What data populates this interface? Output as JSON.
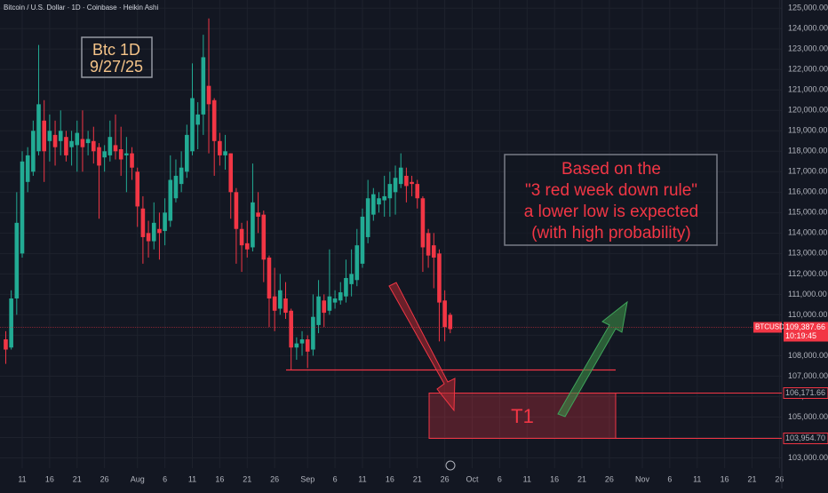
{
  "chart_data": {
    "type": "candlestick",
    "title": "Bitcoin / U.S. Dollar · 1D · Coinbase · Heikin Ashi",
    "up_color": "#22ab94",
    "down_color": "#f23645",
    "ylim": [
      102500,
      125400
    ],
    "yticks": [
      {
        "value": 103000,
        "label": "103,000.00"
      },
      {
        "value": 104000,
        "label": "104,000.00"
      },
      {
        "value": 105000,
        "label": "105,000.00"
      },
      {
        "value": 106000,
        "label": "106,000.00"
      },
      {
        "value": 107000,
        "label": "107,000.00"
      },
      {
        "value": 108000,
        "label": "108,000.00"
      },
      {
        "value": 109000,
        "label": "109,000.00"
      },
      {
        "value": 110000,
        "label": "110,000.00"
      },
      {
        "value": 111000,
        "label": "111,000.00"
      },
      {
        "value": 112000,
        "label": "112,000.00"
      },
      {
        "value": 113000,
        "label": "113,000.00"
      },
      {
        "value": 114000,
        "label": "114,000.00"
      },
      {
        "value": 115000,
        "label": "115,000.00"
      },
      {
        "value": 116000,
        "label": "116,000.00"
      },
      {
        "value": 117000,
        "label": "117,000.00"
      },
      {
        "value": 118000,
        "label": "118,000.00"
      },
      {
        "value": 119000,
        "label": "119,000.00"
      },
      {
        "value": 120000,
        "label": "120,000.00"
      },
      {
        "value": 121000,
        "label": "121,000.00"
      },
      {
        "value": 122000,
        "label": "122,000.00"
      },
      {
        "value": 123000,
        "label": "123,000.00"
      },
      {
        "value": 124000,
        "label": "124,000.00"
      },
      {
        "value": 125000,
        "label": "125,000.00"
      }
    ],
    "xticks": [
      {
        "value": "07-11",
        "label": "11"
      },
      {
        "value": "07-16",
        "label": "16"
      },
      {
        "value": "07-21",
        "label": "21"
      },
      {
        "value": "07-26",
        "label": "26"
      },
      {
        "value": "08-01",
        "label": "Aug"
      },
      {
        "value": "08-06",
        "label": "6"
      },
      {
        "value": "08-11",
        "label": "11"
      },
      {
        "value": "08-16",
        "label": "16"
      },
      {
        "value": "08-21",
        "label": "21"
      },
      {
        "value": "08-26",
        "label": "26"
      },
      {
        "value": "09-01",
        "label": "Sep"
      },
      {
        "value": "09-06",
        "label": "6"
      },
      {
        "value": "09-11",
        "label": "11"
      },
      {
        "value": "09-16",
        "label": "16"
      },
      {
        "value": "09-21",
        "label": "21"
      },
      {
        "value": "09-26",
        "label": "26"
      },
      {
        "value": "10-01",
        "label": "Oct"
      },
      {
        "value": "10-06",
        "label": "6"
      },
      {
        "value": "10-11",
        "label": "11"
      },
      {
        "value": "10-16",
        "label": "16"
      },
      {
        "value": "10-21",
        "label": "21"
      },
      {
        "value": "10-26",
        "label": "26"
      },
      {
        "value": "11-01",
        "label": "Nov"
      },
      {
        "value": "11-06",
        "label": "6"
      },
      {
        "value": "11-11",
        "label": "11"
      },
      {
        "value": "11-16",
        "label": "16"
      },
      {
        "value": "11-21",
        "label": "21"
      },
      {
        "value": "11-26",
        "label": "26"
      }
    ],
    "x": [
      "07-08",
      "07-09",
      "07-10",
      "07-11",
      "07-12",
      "07-13",
      "07-14",
      "07-15",
      "07-16",
      "07-17",
      "07-18",
      "07-19",
      "07-20",
      "07-21",
      "07-22",
      "07-23",
      "07-24",
      "07-25",
      "07-26",
      "07-27",
      "07-28",
      "07-29",
      "07-30",
      "07-31",
      "08-01",
      "08-02",
      "08-03",
      "08-04",
      "08-05",
      "08-06",
      "08-07",
      "08-08",
      "08-09",
      "08-10",
      "08-11",
      "08-12",
      "08-13",
      "08-14",
      "08-15",
      "08-16",
      "08-17",
      "08-18",
      "08-19",
      "08-20",
      "08-21",
      "08-22",
      "08-23",
      "08-24",
      "08-25",
      "08-26",
      "08-27",
      "08-28",
      "08-29",
      "08-30",
      "08-31",
      "09-01",
      "09-02",
      "09-03",
      "09-04",
      "09-05",
      "09-06",
      "09-07",
      "09-08",
      "09-09",
      "09-10",
      "09-11",
      "09-12",
      "09-13",
      "09-14",
      "09-15",
      "09-16",
      "09-17",
      "09-18",
      "09-19",
      "09-20",
      "09-21",
      "09-22",
      "09-23",
      "09-24",
      "09-25",
      "09-26",
      "09-27"
    ],
    "open": [
      108800,
      108400,
      110800,
      113000,
      116500,
      117000,
      118000,
      119500,
      118500,
      118800,
      118500,
      118700,
      118200,
      118300,
      118600,
      118400,
      118500,
      118200,
      117700,
      117800,
      118300,
      118100,
      117800,
      117900,
      117000,
      115200,
      114000,
      113600,
      114200,
      114100,
      114600,
      115700,
      116400,
      117000,
      118000,
      119300,
      119800,
      121200,
      120500,
      118500,
      117800,
      117900,
      116000,
      114200,
      113500,
      113300,
      115000,
      114900,
      112800,
      110900,
      110300,
      110800,
      110200,
      108400,
      108600,
      108800,
      108300,
      109500,
      110700,
      110200,
      110600,
      110700,
      110900,
      111500,
      111700,
      112500,
      113800,
      114900,
      115400,
      115600,
      115700,
      116000,
      116400,
      116800,
      116500,
      116400,
      115700,
      114000,
      113400,
      113000,
      110700,
      110000
    ],
    "high": [
      109200,
      111200,
      116000,
      118000,
      118200,
      119500,
      123200,
      120500,
      119800,
      119500,
      120000,
      119000,
      119000,
      119500,
      120000,
      119000,
      119200,
      118400,
      118300,
      119500,
      119800,
      119200,
      118700,
      118200,
      117200,
      115800,
      114600,
      115500,
      115000,
      115700,
      117800,
      117600,
      118000,
      119300,
      122300,
      120400,
      123700,
      124500,
      120600,
      118900,
      118800,
      117900,
      116200,
      114500,
      114600,
      117400,
      116000,
      115100,
      112900,
      112300,
      112000,
      111600,
      110300,
      108900,
      109200,
      109000,
      111000,
      111700,
      111000,
      113200,
      111200,
      111600,
      112700,
      113200,
      114200,
      115200,
      116600,
      116200,
      116000,
      116800,
      117000,
      117300,
      117900,
      117200,
      116800,
      116600,
      115800,
      114200,
      114000,
      113200,
      111200,
      110100
    ],
    "low": [
      107600,
      108300,
      110000,
      112800,
      116000,
      116800,
      117800,
      116500,
      117500,
      117300,
      117800,
      117500,
      117300,
      117000,
      117000,
      117800,
      117400,
      114700,
      117000,
      117500,
      117600,
      116800,
      116000,
      116600,
      114300,
      112500,
      112800,
      113200,
      112700,
      113400,
      114300,
      115500,
      116000,
      116700,
      117800,
      118100,
      118800,
      117900,
      116800,
      117300,
      117100,
      114700,
      112500,
      112100,
      112800,
      113100,
      114000,
      111600,
      109400,
      109200,
      110000,
      109800,
      107300,
      107800,
      108000,
      107400,
      108000,
      109100,
      109400,
      110000,
      110300,
      110500,
      110600,
      110900,
      111400,
      112300,
      113500,
      114600,
      115000,
      114800,
      114800,
      114900,
      116200,
      115500,
      115800,
      115200,
      112100,
      112300,
      111300,
      108700,
      108700,
      109100
    ],
    "close": [
      108300,
      110800,
      114500,
      117500,
      117800,
      119000,
      120300,
      118000,
      119000,
      118200,
      119000,
      117800,
      118500,
      118900,
      118200,
      118600,
      118000,
      117300,
      118000,
      118700,
      118000,
      117600,
      117900,
      117200,
      115300,
      113800,
      113600,
      114500,
      114000,
      115000,
      116600,
      116800,
      117200,
      118800,
      120600,
      119800,
      122600,
      120300,
      118500,
      117800,
      118000,
      116000,
      114200,
      113400,
      113200,
      115500,
      114800,
      112700,
      110800,
      110200,
      111200,
      110100,
      108400,
      108600,
      108800,
      108200,
      109900,
      110900,
      110100,
      110900,
      110800,
      111100,
      111800,
      112000,
      113400,
      114800,
      115700,
      115900,
      115700,
      115800,
      116400,
      116700,
      117200,
      116300,
      116400,
      115700,
      113300,
      112900,
      112800,
      110600,
      109400,
      109300
    ],
    "note_title": [
      "Btc 1D",
      "9/27/25"
    ],
    "annotation": [
      "Based on the",
      "\"3 red week down rule\"",
      "a lower low is expected",
      "(with high probability)"
    ],
    "target_label": "T1",
    "support_level": 107300,
    "last_price": {
      "symbol": "BTCUSD",
      "value": 109387.66,
      "label": "109,387.66",
      "countdown": "10:19:45"
    },
    "levels": [
      {
        "value": 106171.66,
        "label": "106,171.66"
      },
      {
        "value": 103954.7,
        "label": "103,954.70"
      }
    ]
  }
}
